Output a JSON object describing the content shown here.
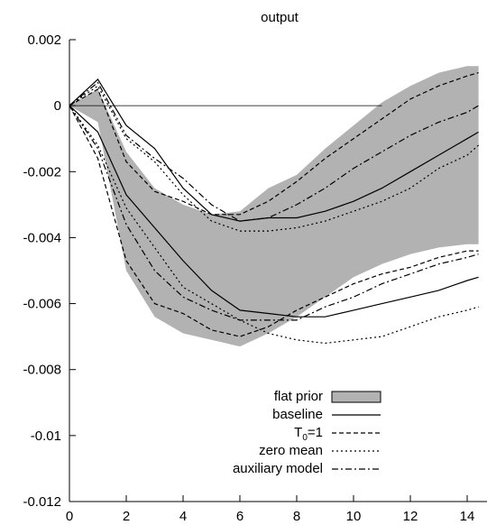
{
  "chart_data": {
    "type": "line",
    "title": "output",
    "xlabel": "",
    "ylabel": "",
    "xlim": [
      0,
      14.4
    ],
    "ylim": [
      -0.012,
      0.002
    ],
    "x_ticks": [
      0,
      2,
      4,
      6,
      8,
      10,
      12,
      14
    ],
    "y_ticks": [
      0.002,
      0,
      -0.002,
      -0.004,
      -0.006,
      -0.008,
      -0.01,
      -0.012
    ],
    "x_tick_labels": [
      "0",
      "2",
      "4",
      "6",
      "8",
      "10",
      "12",
      "14"
    ],
    "y_tick_labels": [
      "0.002",
      "0",
      "-0.002",
      "-0.004",
      "-0.006",
      "-0.008",
      "-0.01",
      "-0.012"
    ],
    "grid": false,
    "legend_position": "bottom-right",
    "zero_line": {
      "y": 0,
      "x_range": [
        0,
        11
      ]
    },
    "band": {
      "name": "flat prior",
      "color": "#b2b2b2",
      "x": [
        0,
        1,
        2,
        3,
        4,
        5,
        6,
        7,
        8,
        9,
        10,
        11,
        12,
        13,
        14,
        14.4
      ],
      "upper": [
        0,
        0.0005,
        -0.0014,
        -0.0025,
        -0.003,
        -0.0033,
        -0.0032,
        -0.0025,
        -0.0021,
        -0.0013,
        -0.0006,
        0.0001,
        0.0006,
        0.001,
        0.0012,
        0.0012
      ],
      "lower": [
        0,
        -0.0005,
        -0.005,
        -0.0064,
        -0.0069,
        -0.0071,
        -0.0073,
        -0.0069,
        -0.0064,
        -0.0058,
        -0.0052,
        -0.0048,
        -0.0045,
        -0.0043,
        -0.0042,
        -0.0042
      ]
    },
    "series": [
      {
        "name": "baseline",
        "style": "solid",
        "upper": [
          0,
          0.0008,
          -0.0006,
          -0.0013,
          -0.0025,
          -0.0033,
          -0.0035,
          -0.0034,
          -0.0034,
          -0.0032,
          -0.0029,
          -0.0025,
          -0.002,
          -0.0015,
          -0.001,
          -0.0008
        ],
        "lower": [
          0,
          -0.0008,
          -0.0027,
          -0.0037,
          -0.0047,
          -0.0056,
          -0.0062,
          -0.0063,
          -0.0064,
          -0.0064,
          -0.0062,
          -0.006,
          -0.0058,
          -0.0056,
          -0.0053,
          -0.0052
        ]
      },
      {
        "name": "T₀=1",
        "style": "dashed",
        "upper": [
          0,
          0.0005,
          -0.0017,
          -0.0026,
          -0.0029,
          -0.0033,
          -0.0033,
          -0.0029,
          -0.0023,
          -0.0016,
          -0.001,
          -0.0004,
          0.0002,
          0.0006,
          0.0009,
          0.001
        ],
        "lower": [
          0,
          -0.0016,
          -0.0047,
          -0.006,
          -0.0063,
          -0.0068,
          -0.007,
          -0.0067,
          -0.0062,
          -0.0058,
          -0.0054,
          -0.0051,
          -0.0049,
          -0.0046,
          -0.0044,
          -0.0044
        ]
      },
      {
        "name": "zero mean",
        "style": "dotted",
        "upper": [
          0,
          0.0006,
          -0.001,
          -0.0017,
          -0.0027,
          -0.0035,
          -0.0038,
          -0.0038,
          -0.0037,
          -0.0035,
          -0.0032,
          -0.0029,
          -0.0025,
          -0.0019,
          -0.0015,
          -0.0012
        ],
        "lower": [
          0,
          -0.0012,
          -0.0031,
          -0.0043,
          -0.0055,
          -0.006,
          -0.0065,
          -0.0069,
          -0.0071,
          -0.0072,
          -0.0071,
          -0.007,
          -0.0067,
          -0.0064,
          -0.0062,
          -0.0061
        ]
      },
      {
        "name": "auxiliary model",
        "style": "dashdot",
        "upper": [
          0,
          0.0007,
          -0.0009,
          -0.0016,
          -0.0022,
          -0.003,
          -0.0035,
          -0.0034,
          -0.003,
          -0.0025,
          -0.0019,
          -0.0014,
          -0.0009,
          -0.0005,
          -0.0002,
          0
        ],
        "lower": [
          0,
          -0.0013,
          -0.0036,
          -0.005,
          -0.0058,
          -0.0062,
          -0.0065,
          -0.0065,
          -0.0065,
          -0.0061,
          -0.0058,
          -0.0054,
          -0.0051,
          -0.0048,
          -0.0046,
          -0.0045
        ]
      }
    ]
  },
  "legend": {
    "flat_prior": "flat prior",
    "baseline": "baseline",
    "t0_main": "T",
    "t0_sub": "0",
    "t0_suffix": "=1",
    "zero_mean": "zero mean",
    "auxiliary_model": "auxiliary model"
  },
  "colors": {
    "band": "#b2b2b2",
    "line": "#000000"
  }
}
